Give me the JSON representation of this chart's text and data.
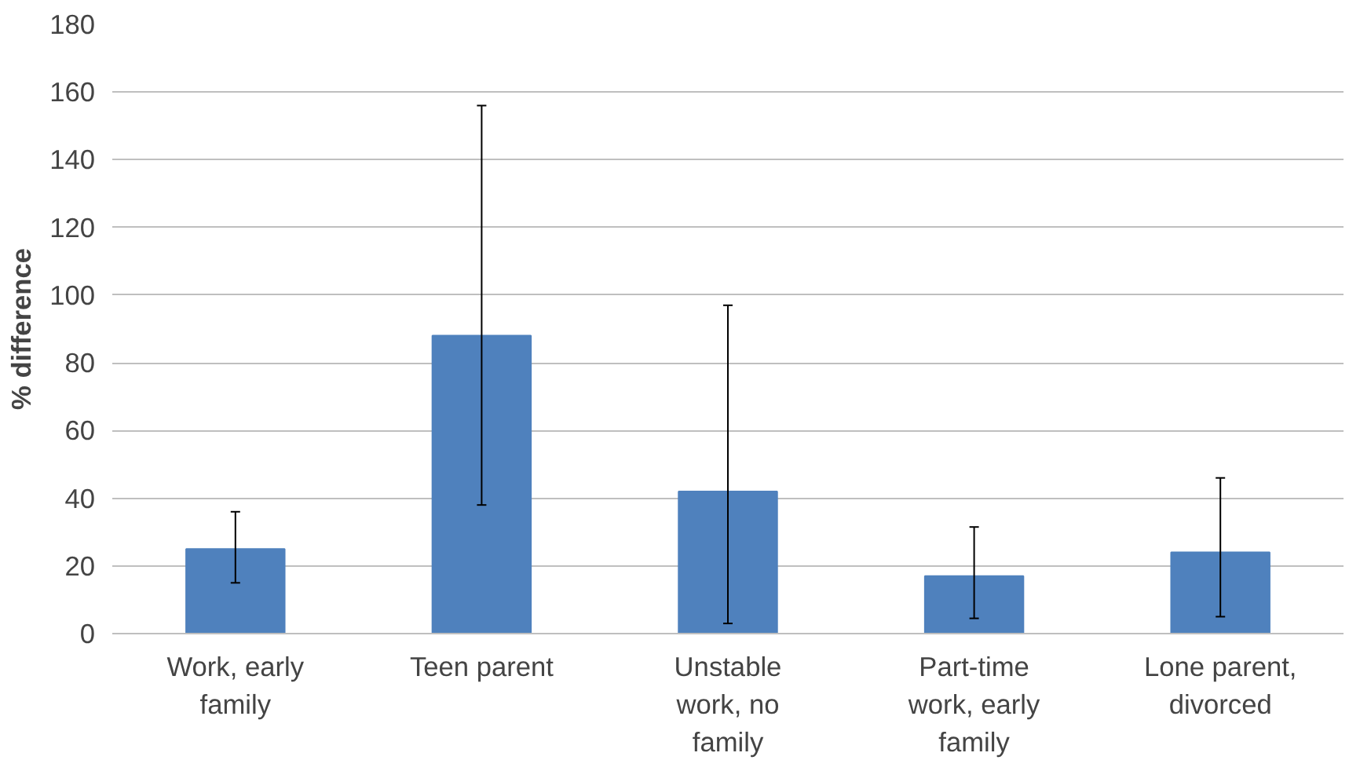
{
  "chart_data": {
    "type": "bar",
    "ylabel": "% difference",
    "categories": [
      "Work, early\nfamily",
      "Teen parent",
      "Unstable\nwork, no\nfamily",
      "Part-time\nwork, early\nfamily",
      "Lone parent,\ndivorced"
    ],
    "values": [
      25,
      88,
      42,
      17,
      24
    ],
    "errors": [
      [
        15,
        36
      ],
      [
        38,
        156
      ],
      [
        3,
        97
      ],
      [
        4.5,
        31.5
      ],
      [
        5,
        46
      ]
    ],
    "color": "#4f81bd",
    "ylim": [
      0,
      180
    ],
    "yticks": [
      0,
      20,
      40,
      60,
      80,
      100,
      120,
      140,
      160,
      180
    ],
    "grid": "y"
  }
}
